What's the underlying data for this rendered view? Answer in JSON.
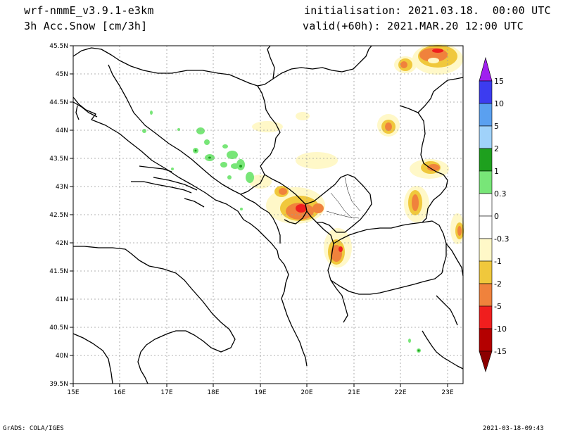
{
  "header": {
    "model": "wrf-nmmE_v3.9.1-e3km",
    "field": "3h Acc.Snow [cm/3h]",
    "init": "initialisation: 2021.03.18.  00:00 UTC",
    "valid": "valid(+60h): 2021.MAR.20 12:00 UTC"
  },
  "footer": {
    "left": "GrADS: COLA/IGES",
    "right": "2021-03-18-09:43"
  },
  "map": {
    "lat_labels": [
      "45.5N",
      "45N",
      "44.5N",
      "44N",
      "43.5N",
      "43N",
      "42.5N",
      "42N",
      "41.5N",
      "41N",
      "40.5N",
      "40N",
      "39.5N"
    ],
    "lon_labels": [
      "15E",
      "16E",
      "17E",
      "18E",
      "19E",
      "20E",
      "21E",
      "22E",
      "23E"
    ],
    "lon_range": [
      15,
      23.35
    ],
    "lat_range": [
      39.5,
      45.5
    ],
    "grid": true,
    "colors": {
      "coast": "#000000",
      "grid": "#9a9a9a"
    }
  },
  "colorbar": {
    "labels": [
      "15",
      "10",
      "5",
      "2",
      "1",
      "0.3",
      "0",
      "-0.3",
      "-1",
      "-2",
      "-5",
      "-10",
      "-15"
    ],
    "colors": {
      "top_arrow": "#a020f0",
      "b1": "#3c3cf0",
      "b2": "#5aa0f0",
      "b3": "#a0d2fa",
      "b4": "#1ea01e",
      "b5": "#78e678",
      "b6": "#ffffff",
      "b7": "#ffffff",
      "b8": "#fff8c8",
      "b9": "#f0c83c",
      "b10": "#f0823c",
      "b11": "#f01e1e",
      "b12": "#b40000",
      "bottom_arrow": "#8c0000"
    }
  }
}
